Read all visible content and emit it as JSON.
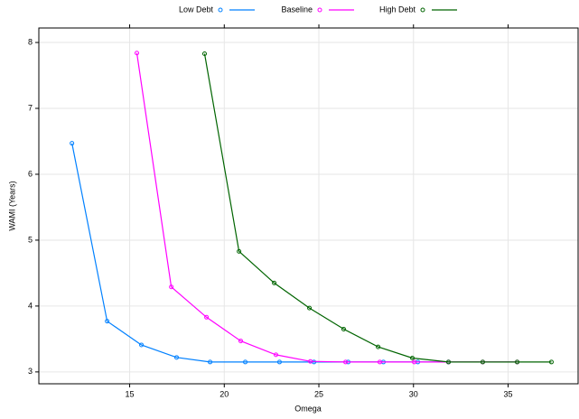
{
  "chart_data": {
    "type": "line",
    "x_label": "Omega",
    "y_label": "WAMI (Years)",
    "xlim": [
      10.2,
      38.7
    ],
    "ylim": [
      2.82,
      8.22
    ],
    "xticks": [
      15,
      20,
      25,
      30,
      35
    ],
    "yticks": [
      3,
      4,
      5,
      6,
      7,
      8
    ],
    "grid": true,
    "legend": "top",
    "series": [
      {
        "name": "Low Debt",
        "color": "#0080ff",
        "x": [
          11.95,
          13.81,
          15.62,
          17.48,
          19.25,
          21.11,
          22.92,
          24.74,
          26.55,
          28.41,
          30.23,
          31.85
        ],
        "values": [
          6.47,
          3.77,
          3.41,
          3.22,
          3.15,
          3.15,
          3.15,
          3.15,
          3.15,
          3.15,
          3.15,
          3.15
        ]
      },
      {
        "name": "Baseline",
        "color": "#ff00ff",
        "x": [
          15.38,
          17.2,
          19.06,
          20.87,
          22.73,
          24.55,
          26.41,
          28.22,
          30.04,
          31.85,
          33.66,
          35.48
        ],
        "values": [
          7.84,
          4.29,
          3.83,
          3.47,
          3.26,
          3.16,
          3.15,
          3.15,
          3.15,
          3.15,
          3.15,
          3.15
        ]
      },
      {
        "name": "High Debt",
        "color": "#006400",
        "x": [
          18.96,
          20.78,
          22.64,
          24.5,
          26.31,
          28.13,
          29.94,
          31.85,
          33.66,
          35.48,
          37.29
        ],
        "values": [
          7.83,
          4.83,
          4.35,
          3.97,
          3.65,
          3.38,
          3.21,
          3.15,
          3.15,
          3.15,
          3.15
        ]
      }
    ]
  }
}
